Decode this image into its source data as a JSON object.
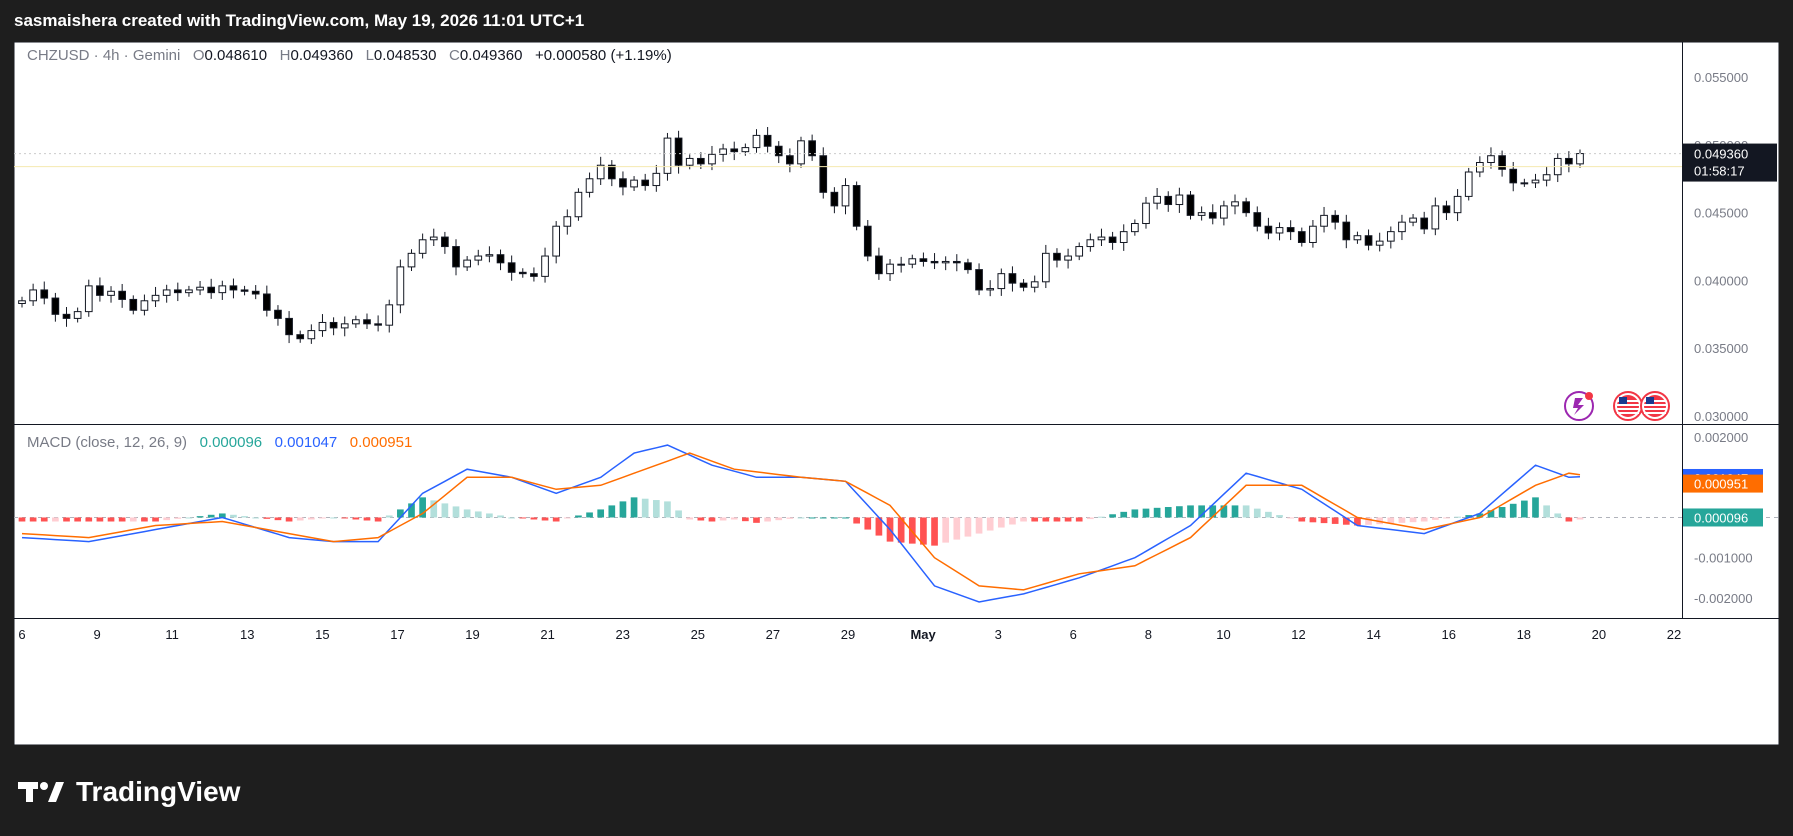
{
  "header": {
    "text": "sasmaishera created with TradingView.com, May 19, 2026 11:01 UTC+1"
  },
  "legend": {
    "symbol": "CHZUSD · 4h · Gemini",
    "o_label": "O",
    "o": "0.048610",
    "h_label": "H",
    "h": "0.049360",
    "l_label": "L",
    "l": "0.048530",
    "c_label": "C",
    "c": "0.049360",
    "change": "+0.000580 (+1.19%)"
  },
  "macd_legend": {
    "title": "MACD (close, 12, 26, 9)",
    "hist": "0.000096",
    "macd": "0.001047",
    "signal": "0.000951"
  },
  "price_badge": {
    "price": "0.049360",
    "countdown": "01:58:17"
  },
  "macd_badges": {
    "macd": "0.001047",
    "signal": "0.000951",
    "hist": "0.000096"
  },
  "footer": {
    "brand": "TradingView",
    "logo_icon": "tradingview-logo-icon"
  },
  "icons": [
    "lightning-icon",
    "us-flag-icon",
    "us-flag-icon"
  ],
  "colors": {
    "up": "#ffffff",
    "down": "#000000",
    "macd": "#2962ff",
    "signal": "#ff6d00",
    "hist_pos_strong": "#26a69a",
    "hist_pos_weak": "#b2dfdb",
    "hist_neg_strong": "#ff5252",
    "hist_neg_weak": "#ffcdd2"
  },
  "chart_data": [
    {
      "type": "candlestick",
      "series_name": "CHZUSD",
      "ylim": [
        0.03,
        0.057
      ],
      "y_ticks": [
        "0.055000",
        "0.050000",
        "0.045000",
        "0.040000",
        "0.035000",
        "0.030000"
      ],
      "x_ticks": [
        "6",
        "9",
        "11",
        "13",
        "15",
        "17",
        "19",
        "21",
        "23",
        "25",
        "27",
        "29",
        "May",
        "3",
        "6",
        "8",
        "10",
        "12",
        "14",
        "16",
        "18",
        "20",
        "22"
      ],
      "closes": [
        0.0385,
        0.0393,
        0.0387,
        0.0375,
        0.0372,
        0.0377,
        0.0396,
        0.0389,
        0.0392,
        0.0386,
        0.0378,
        0.0385,
        0.0389,
        0.0393,
        0.0391,
        0.0393,
        0.0395,
        0.0391,
        0.0396,
        0.0393,
        0.0392,
        0.039,
        0.0378,
        0.0372,
        0.036,
        0.0357,
        0.0363,
        0.0369,
        0.0365,
        0.0368,
        0.0371,
        0.0368,
        0.0367,
        0.0382,
        0.041,
        0.042,
        0.043,
        0.0432,
        0.0425,
        0.041,
        0.0415,
        0.0418,
        0.0419,
        0.0413,
        0.0406,
        0.0405,
        0.0403,
        0.0418,
        0.044,
        0.0447,
        0.0465,
        0.0475,
        0.0485,
        0.0475,
        0.0469,
        0.0474,
        0.047,
        0.0479,
        0.0505,
        0.0485,
        0.049,
        0.0486,
        0.0493,
        0.0497,
        0.0495,
        0.0498,
        0.0507,
        0.0499,
        0.0492,
        0.0486,
        0.0503,
        0.0492,
        0.0465,
        0.0455,
        0.047,
        0.044,
        0.0418,
        0.0405,
        0.0412,
        0.0412,
        0.0416,
        0.0414,
        0.0413,
        0.0414,
        0.0413,
        0.0408,
        0.0393,
        0.0394,
        0.0405,
        0.0398,
        0.0395,
        0.0399,
        0.042,
        0.0415,
        0.0418,
        0.0425,
        0.043,
        0.0432,
        0.0428,
        0.0436,
        0.0442,
        0.0457,
        0.0462,
        0.0456,
        0.0463,
        0.0448,
        0.045,
        0.0446,
        0.0455,
        0.0458,
        0.045,
        0.044,
        0.0435,
        0.0439,
        0.0436,
        0.0428,
        0.044,
        0.0448,
        0.0443,
        0.043,
        0.0433,
        0.0426,
        0.0429,
        0.0436,
        0.0443,
        0.0446,
        0.0438,
        0.0455,
        0.045,
        0.0462,
        0.048,
        0.0487,
        0.0492,
        0.0482,
        0.0472,
        0.0472,
        0.0474,
        0.0478,
        0.049,
        0.0486,
        0.04936
      ]
    },
    {
      "type": "line",
      "title": "MACD (close, 12, 26, 9)",
      "ylim": [
        -0.0023,
        0.0021
      ],
      "y_ticks": [
        "0.002000",
        "-0.001000",
        "-0.002000"
      ],
      "series": [
        {
          "name": "MACD",
          "points": [
            [
              0,
              -0.0005
            ],
            [
              6,
              -0.0006
            ],
            [
              12,
              -0.0003
            ],
            [
              18,
              0.0
            ],
            [
              24,
              -0.0005
            ],
            [
              28,
              -0.0006
            ],
            [
              32,
              -0.0006
            ],
            [
              36,
              0.0006
            ],
            [
              40,
              0.0012
            ],
            [
              44,
              0.001
            ],
            [
              48,
              0.0006
            ],
            [
              52,
              0.001
            ],
            [
              55,
              0.0016
            ],
            [
              58,
              0.0018
            ],
            [
              62,
              0.0013
            ],
            [
              66,
              0.001
            ],
            [
              70,
              0.001
            ],
            [
              74,
              0.0009
            ],
            [
              78,
              -0.0003
            ],
            [
              82,
              -0.0017
            ],
            [
              86,
              -0.0021
            ],
            [
              90,
              -0.0019
            ],
            [
              95,
              -0.0015
            ],
            [
              100,
              -0.001
            ],
            [
              105,
              -0.0002
            ],
            [
              110,
              0.0011
            ],
            [
              115,
              0.0007
            ],
            [
              120,
              -0.0002
            ],
            [
              126,
              -0.0004
            ],
            [
              131,
              0.0001
            ],
            [
              136,
              0.0013
            ],
            [
              139,
              0.001
            ],
            [
              143,
              0.001047
            ]
          ]
        },
        {
          "name": "Signal",
          "points": [
            [
              0,
              -0.0004
            ],
            [
              6,
              -0.0005
            ],
            [
              12,
              -0.0002
            ],
            [
              18,
              -0.0001
            ],
            [
              24,
              -0.0004
            ],
            [
              28,
              -0.0006
            ],
            [
              32,
              -0.0005
            ],
            [
              36,
              0.0001
            ],
            [
              40,
              0.001
            ],
            [
              44,
              0.001
            ],
            [
              48,
              0.0007
            ],
            [
              52,
              0.0008
            ],
            [
              56,
              0.0012
            ],
            [
              60,
              0.0016
            ],
            [
              64,
              0.0012
            ],
            [
              70,
              0.001
            ],
            [
              74,
              0.0009
            ],
            [
              78,
              0.0003
            ],
            [
              82,
              -0.001
            ],
            [
              86,
              -0.0017
            ],
            [
              90,
              -0.0018
            ],
            [
              95,
              -0.0014
            ],
            [
              100,
              -0.0012
            ],
            [
              105,
              -0.0005
            ],
            [
              110,
              0.0008
            ],
            [
              115,
              0.0008
            ],
            [
              120,
              0.0
            ],
            [
              126,
              -0.0003
            ],
            [
              131,
              0.0
            ],
            [
              136,
              0.0008
            ],
            [
              139,
              0.0011
            ],
            [
              143,
              0.000951
            ]
          ]
        }
      ]
    }
  ]
}
